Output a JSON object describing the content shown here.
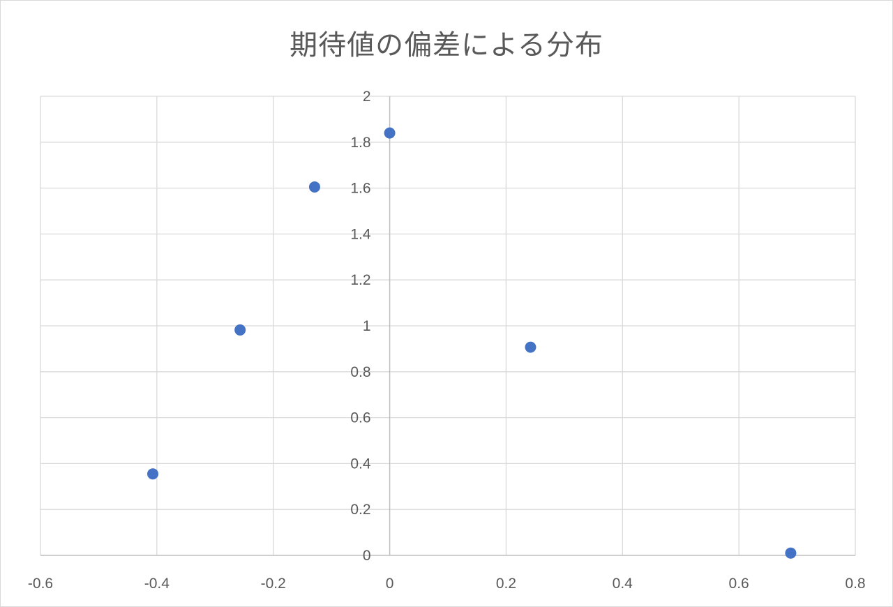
{
  "chart_data": {
    "type": "scatter",
    "title": "期待値の偏差による分布",
    "xlabel": "",
    "ylabel": "",
    "xlim": [
      -0.6,
      0.8
    ],
    "ylim": [
      0,
      2
    ],
    "x_ticks": [
      -0.6,
      -0.4,
      -0.2,
      0,
      0.2,
      0.4,
      0.6,
      0.8
    ],
    "x_tick_labels": [
      "-0.6",
      "-0.4",
      "-0.2",
      "0",
      "0.2",
      "0.4",
      "0.6",
      "0.8"
    ],
    "y_ticks": [
      0,
      0.2,
      0.4,
      0.6,
      0.8,
      1,
      1.2,
      1.4,
      1.6,
      1.8,
      2
    ],
    "y_tick_labels": [
      "0",
      "0.2",
      "0.4",
      "0.6",
      "0.8",
      "1",
      "1.2",
      "1.4",
      "1.6",
      "1.8",
      "2"
    ],
    "grid": true,
    "legend": "none",
    "series": [
      {
        "color": "#4472c4",
        "points": [
          {
            "x": -0.407,
            "y": 0.355
          },
          {
            "x": -0.257,
            "y": 0.982
          },
          {
            "x": -0.129,
            "y": 1.605
          },
          {
            "x": 0.0,
            "y": 1.84
          },
          {
            "x": 0.242,
            "y": 0.907
          },
          {
            "x": 0.689,
            "y": 0.01
          }
        ]
      }
    ]
  }
}
